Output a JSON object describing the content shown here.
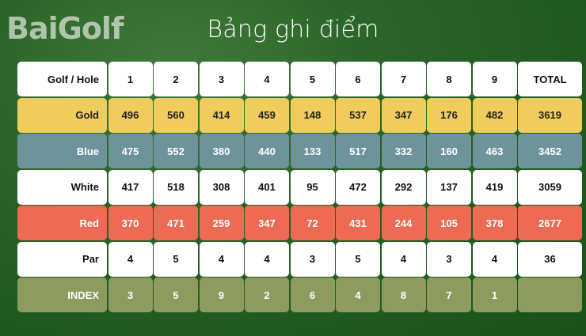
{
  "title": "Bảng ghi điểm",
  "logo": "BaiGolf",
  "colors": {
    "gold": "#efcc5b",
    "blue": "#6f939a",
    "white": "#ffffff",
    "red": "#ed6a54",
    "index": "#8d9b5e",
    "background": "#2b6428"
  },
  "table": {
    "rows": [
      {
        "key": "header",
        "label": "Golf / Hole",
        "values": [
          "1",
          "2",
          "3",
          "4",
          "5",
          "6",
          "7",
          "8",
          "9"
        ],
        "total": "TOTAL"
      },
      {
        "key": "gold",
        "label": "Gold",
        "values": [
          "496",
          "560",
          "414",
          "459",
          "148",
          "537",
          "347",
          "176",
          "482"
        ],
        "total": "3619"
      },
      {
        "key": "blue",
        "label": "Blue",
        "values": [
          "475",
          "552",
          "380",
          "440",
          "133",
          "517",
          "332",
          "160",
          "463"
        ],
        "total": "3452"
      },
      {
        "key": "white",
        "label": "White",
        "values": [
          "417",
          "518",
          "308",
          "401",
          "95",
          "472",
          "292",
          "137",
          "419"
        ],
        "total": "3059"
      },
      {
        "key": "red",
        "label": "Red",
        "values": [
          "370",
          "471",
          "259",
          "347",
          "72",
          "431",
          "244",
          "105",
          "378"
        ],
        "total": "2677"
      },
      {
        "key": "par",
        "label": "Par",
        "values": [
          "4",
          "5",
          "4",
          "4",
          "3",
          "5",
          "4",
          "3",
          "4"
        ],
        "total": "36"
      },
      {
        "key": "index",
        "label": "INDEX",
        "values": [
          "3",
          "5",
          "9",
          "2",
          "6",
          "4",
          "8",
          "7",
          "1"
        ],
        "total": ""
      }
    ]
  }
}
